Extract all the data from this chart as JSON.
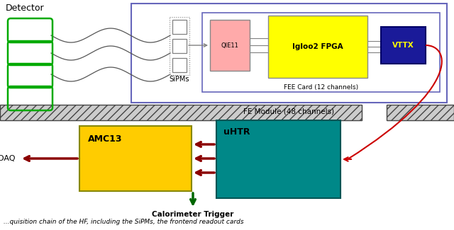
{
  "bg_color": "#ffffff",
  "top_label": "Detector",
  "fe_module_label": "FE Module (48 channels)",
  "fee_card_label": "FEE Card (12 channels)",
  "sipm_label": "SiPMs",
  "qie_label": "QIE11",
  "fpga_label": "Igloo2 FPGA",
  "vttx_label": "VTTX",
  "amc_label": "AMC13",
  "uhtr_label": "uHTR",
  "cdaq_label": "cDAQ",
  "trigger_label": "Calorimeter Trigger",
  "caption": "quisition chain of the HF, including the SiPMs, the frontend readout cards",
  "colors": {
    "fe_module_border": "#6666bb",
    "fee_card_border": "#6666bb",
    "qie_fill": "#ffaaaa",
    "fpga_fill": "#ffff00",
    "vttx_fill": "#1a1a99",
    "vttx_text": "#ffff00",
    "amc_fill": "#ffcc00",
    "uhtr_fill": "#008888",
    "arrow_dark_red": "#8b0000",
    "arrow_green": "#006600",
    "arrow_red_line": "#cc0000",
    "sipm_green": "#00aa00",
    "bar_fill": "#cccccc",
    "bar_edge": "#444444"
  }
}
